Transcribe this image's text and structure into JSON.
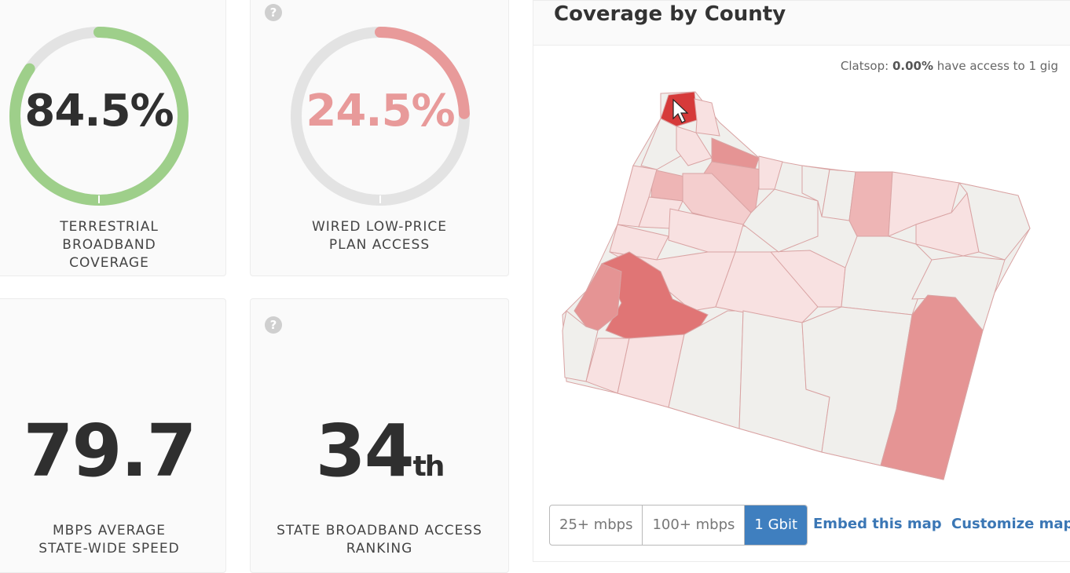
{
  "cards": {
    "coverage": {
      "value": "84.5%",
      "fraction": 0.845,
      "label": "TERRESTRIAL BROADBAND COVERAGE",
      "color": "#9ecf8a"
    },
    "low_price": {
      "value": "24.5%",
      "fraction": 0.245,
      "label": "WIRED LOW-PRICE PLAN ACCESS",
      "color": "#e89a9a",
      "help": "?"
    },
    "speed": {
      "value": "79.7",
      "label": "MBPS AVERAGE STATE-WIDE SPEED"
    },
    "ranking": {
      "value": "34",
      "suffix": "th",
      "label": "STATE BROADBAND ACCESS RANKING",
      "help": "?"
    }
  },
  "map_panel": {
    "title": "Coverage by County",
    "hover_county": "Clatsop",
    "hover_value": "0.00%",
    "hover_suffix": "have access to 1 gig",
    "speed_options": [
      "25+ mbps",
      "100+ mbps",
      "1 Gbit"
    ],
    "selected_option": "1 Gbit",
    "embed_link": "Embed this map",
    "customize_link": "Customize map",
    "colors": {
      "none": "#f0efec",
      "light": "#f8e1e1",
      "mid": "#eeb5b5",
      "strong": "#e59494",
      "dark": "#e07575",
      "highlight": "#d63a3a"
    }
  }
}
